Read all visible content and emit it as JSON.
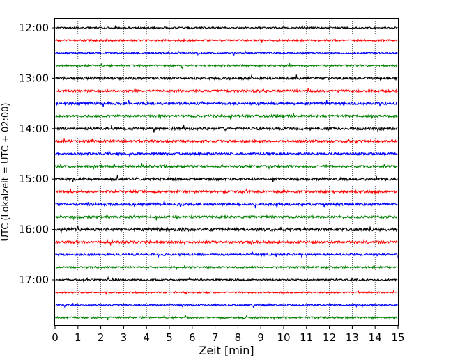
{
  "chart_data": {
    "type": "line",
    "title": "",
    "xlabel": "Zeit  [min]",
    "ylabel": "UTC (Lokalzeit = UTC + 02:00)",
    "xlim": [
      0,
      15
    ],
    "x_ticks": [
      "0",
      "1",
      "2",
      "3",
      "4",
      "5",
      "6",
      "7",
      "8",
      "9",
      "10",
      "11",
      "12",
      "13",
      "14",
      "15"
    ],
    "y_tick_labels": [
      "12:00",
      "13:00",
      "14:00",
      "15:00",
      "16:00",
      "17:00"
    ],
    "grid": "vertical-dotted",
    "trace_interval_minutes": 15,
    "colors": [
      "#000000",
      "#ff0000",
      "#0000ff",
      "#008000"
    ],
    "traces": [
      {
        "start": "12:00",
        "color": "#000000",
        "amplitude": 0.3
      },
      {
        "start": "12:15",
        "color": "#ff0000",
        "amplitude": 0.3
      },
      {
        "start": "12:30",
        "color": "#0000ff",
        "amplitude": 0.3
      },
      {
        "start": "12:45",
        "color": "#008000",
        "amplitude": 0.3
      },
      {
        "start": "13:00",
        "color": "#000000",
        "amplitude": 0.45
      },
      {
        "start": "13:15",
        "color": "#ff0000",
        "amplitude": 0.4
      },
      {
        "start": "13:30",
        "color": "#0000ff",
        "amplitude": 0.45
      },
      {
        "start": "13:45",
        "color": "#008000",
        "amplitude": 0.4
      },
      {
        "start": "14:00",
        "color": "#000000",
        "amplitude": 0.45
      },
      {
        "start": "14:15",
        "color": "#ff0000",
        "amplitude": 0.4
      },
      {
        "start": "14:30",
        "color": "#0000ff",
        "amplitude": 0.4
      },
      {
        "start": "14:45",
        "color": "#008000",
        "amplitude": 0.4
      },
      {
        "start": "15:00",
        "color": "#000000",
        "amplitude": 0.45
      },
      {
        "start": "15:15",
        "color": "#ff0000",
        "amplitude": 0.4
      },
      {
        "start": "15:30",
        "color": "#0000ff",
        "amplitude": 0.45
      },
      {
        "start": "15:45",
        "color": "#008000",
        "amplitude": 0.4
      },
      {
        "start": "16:00",
        "color": "#000000",
        "amplitude": 0.55
      },
      {
        "start": "16:15",
        "color": "#ff0000",
        "amplitude": 0.45
      },
      {
        "start": "16:30",
        "color": "#0000ff",
        "amplitude": 0.35
      },
      {
        "start": "16:45",
        "color": "#008000",
        "amplitude": 0.3
      },
      {
        "start": "17:00",
        "color": "#000000",
        "amplitude": 0.3
      },
      {
        "start": "17:15",
        "color": "#ff0000",
        "amplitude": 0.25
      },
      {
        "start": "17:30",
        "color": "#0000ff",
        "amplitude": 0.3
      },
      {
        "start": "17:45",
        "color": "#008000",
        "amplitude": 0.3
      }
    ]
  }
}
